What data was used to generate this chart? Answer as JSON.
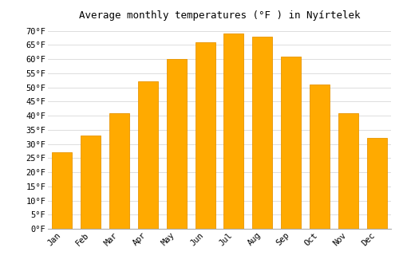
{
  "title": "Average monthly temperatures (°F ) in Nyírtelek",
  "months": [
    "Jan",
    "Feb",
    "Mar",
    "Apr",
    "May",
    "Jun",
    "Jul",
    "Aug",
    "Sep",
    "Oct",
    "Nov",
    "Dec"
  ],
  "values": [
    27,
    33,
    41,
    52,
    60,
    66,
    69,
    68,
    61,
    51,
    41,
    32
  ],
  "bar_color": "#FFAA00",
  "bar_edge_color": "#E89500",
  "background_color": "#FFFFFF",
  "grid_color": "#DDDDDD",
  "ylim": [
    0,
    72
  ],
  "yticks": [
    0,
    5,
    10,
    15,
    20,
    25,
    30,
    35,
    40,
    45,
    50,
    55,
    60,
    65,
    70
  ],
  "title_fontsize": 9,
  "tick_fontsize": 7.5,
  "bar_width": 0.7
}
